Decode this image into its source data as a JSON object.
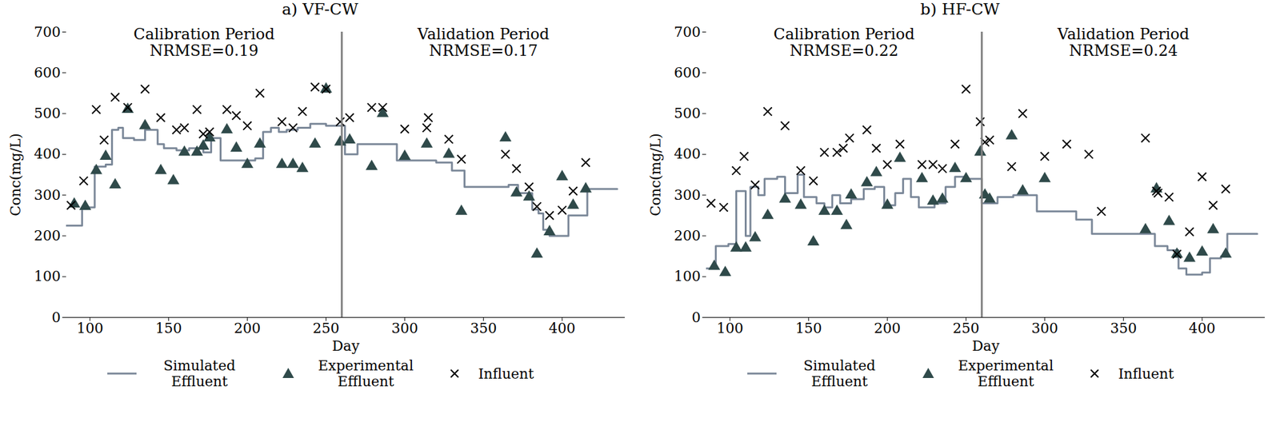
{
  "chart_data": [
    {
      "type": "line",
      "title": "a) VF-CW",
      "x_label": "Day",
      "y_label": "Conc(mg/L)",
      "annotations": [
        [
          "Calibration Period",
          "NRMSE=0.19"
        ],
        [
          "Validation Period",
          "NRMSE=0.17"
        ]
      ],
      "split_day": 260,
      "xlim": [
        85,
        440
      ],
      "xticks": [
        100,
        150,
        200,
        250,
        300,
        350,
        400
      ],
      "ylim": [
        0,
        700
      ],
      "yticks": [
        0,
        100,
        200,
        300,
        400,
        500,
        600,
        700
      ],
      "grid": false,
      "legend": "bottom",
      "series": [
        {
          "name": "Simulated Effluent",
          "type": "line",
          "line_style": "step",
          "color": "#7a8798",
          "x": [
            85,
            95,
            103,
            110,
            114,
            118,
            121,
            128,
            135,
            143,
            147,
            155,
            163,
            168,
            172,
            177,
            183,
            190,
            198,
            205,
            210,
            215,
            220,
            225,
            232,
            237,
            240,
            250,
            260,
            262,
            270,
            287,
            295,
            320,
            330,
            338,
            360,
            366,
            372,
            381,
            385,
            388,
            392,
            400,
            404,
            410,
            416,
            430,
            435
          ],
          "values": [
            225,
            270,
            370,
            375,
            460,
            465,
            440,
            435,
            460,
            425,
            415,
            410,
            415,
            415,
            405,
            440,
            385,
            385,
            385,
            390,
            455,
            465,
            455,
            460,
            465,
            465,
            475,
            470,
            470,
            400,
            425,
            425,
            385,
            380,
            360,
            320,
            320,
            325,
            305,
            265,
            255,
            215,
            200,
            200,
            250,
            250,
            315,
            315,
            315
          ]
        },
        {
          "name": "Experimental Effluent",
          "type": "scatter",
          "marker": "triangle",
          "color": "#2f4a4a",
          "x": [
            90,
            97,
            104,
            110,
            116,
            124,
            135,
            145,
            153,
            160,
            168,
            172,
            176,
            187,
            193,
            200,
            208,
            222,
            229,
            235,
            243,
            250,
            259,
            265,
            279,
            286,
            300,
            314,
            328,
            336,
            364,
            371,
            379,
            384,
            392,
            400,
            407,
            415
          ],
          "values": [
            278,
            272,
            360,
            395,
            325,
            510,
            470,
            360,
            335,
            405,
            405,
            420,
            440,
            460,
            415,
            375,
            425,
            375,
            375,
            365,
            425,
            560,
            430,
            435,
            370,
            500,
            395,
            425,
            400,
            260,
            440,
            305,
            295,
            155,
            210,
            345,
            275,
            315
          ]
        },
        {
          "name": "Influent",
          "type": "scatter",
          "marker": "x",
          "color": "#000000",
          "x": [
            88,
            96,
            104,
            109,
            116,
            124,
            135,
            145,
            155,
            160,
            168,
            172,
            176,
            187,
            193,
            200,
            208,
            222,
            229,
            235,
            243,
            250,
            259,
            265,
            279,
            286,
            300,
            314,
            315,
            328,
            336,
            364,
            371,
            379,
            384,
            392,
            400,
            407,
            415
          ],
          "values": [
            275,
            335,
            510,
            435,
            540,
            515,
            560,
            490,
            460,
            465,
            510,
            450,
            455,
            510,
            495,
            470,
            550,
            480,
            465,
            505,
            565,
            560,
            480,
            490,
            515,
            515,
            462,
            465,
            490,
            437,
            388,
            400,
            365,
            320,
            272,
            250,
            263,
            310,
            380
          ]
        }
      ]
    },
    {
      "type": "line",
      "title": "b) HF-CW",
      "x_label": "Day",
      "y_label": "Conc(mg/L)",
      "annotations": [
        [
          "Calibration Period",
          "NRMSE=0.22"
        ],
        [
          "Validation Period",
          "NRMSE=0.24"
        ]
      ],
      "split_day": 260,
      "xlim": [
        85,
        440
      ],
      "xticks": [
        100,
        150,
        200,
        250,
        300,
        350,
        400
      ],
      "ylim": [
        0,
        700
      ],
      "yticks": [
        0,
        100,
        200,
        300,
        400,
        500,
        600,
        700
      ],
      "grid": false,
      "legend": "bottom",
      "series": [
        {
          "name": "Simulated Effluent",
          "type": "line",
          "line_style": "step",
          "color": "#7a8798",
          "x": [
            85,
            91,
            99,
            104,
            109,
            110,
            113,
            118,
            122,
            130,
            135,
            143,
            147,
            155,
            160,
            165,
            170,
            177,
            185,
            192,
            198,
            205,
            210,
            215,
            220,
            230,
            237,
            243,
            250,
            260,
            270,
            280,
            295,
            320,
            330,
            360,
            370,
            378,
            385,
            390,
            400,
            405,
            412,
            416,
            435
          ],
          "values": [
            120,
            175,
            180,
            310,
            310,
            200,
            320,
            300,
            340,
            345,
            305,
            350,
            295,
            280,
            270,
            300,
            280,
            290,
            315,
            320,
            275,
            305,
            340,
            295,
            270,
            280,
            320,
            345,
            340,
            280,
            295,
            300,
            260,
            240,
            205,
            205,
            175,
            165,
            120,
            105,
            110,
            145,
            150,
            205,
            205
          ]
        },
        {
          "name": "Experimental Effluent",
          "type": "scatter",
          "marker": "triangle",
          "color": "#2f4a4a",
          "x": [
            90,
            97,
            104,
            110,
            116,
            124,
            135,
            145,
            153,
            160,
            168,
            174,
            177,
            187,
            193,
            200,
            208,
            222,
            229,
            235,
            243,
            250,
            259,
            262,
            265,
            279,
            286,
            300,
            364,
            371,
            379,
            384,
            392,
            400,
            407,
            415
          ],
          "values": [
            125,
            110,
            170,
            170,
            195,
            250,
            290,
            275,
            185,
            260,
            260,
            225,
            300,
            330,
            355,
            275,
            390,
            340,
            285,
            290,
            365,
            340,
            405,
            300,
            290,
            445,
            310,
            340,
            215,
            315,
            235,
            155,
            145,
            160,
            215,
            155
          ]
        },
        {
          "name": "Influent",
          "type": "scatter",
          "marker": "x",
          "color": "#000000",
          "x": [
            88,
            96,
            104,
            109,
            116,
            124,
            135,
            145,
            153,
            160,
            168,
            172,
            176,
            187,
            193,
            200,
            208,
            222,
            229,
            235,
            243,
            250,
            259,
            262,
            265,
            279,
            286,
            300,
            314,
            328,
            336,
            364,
            371,
            372,
            379,
            384,
            392,
            400,
            407,
            415
          ],
          "values": [
            280,
            270,
            360,
            395,
            325,
            505,
            470,
            360,
            335,
            405,
            405,
            415,
            440,
            460,
            415,
            375,
            425,
            375,
            375,
            365,
            425,
            560,
            480,
            430,
            435,
            370,
            500,
            395,
            425,
            400,
            260,
            440,
            310,
            305,
            295,
            155,
            210,
            345,
            275,
            315
          ]
        }
      ]
    }
  ]
}
